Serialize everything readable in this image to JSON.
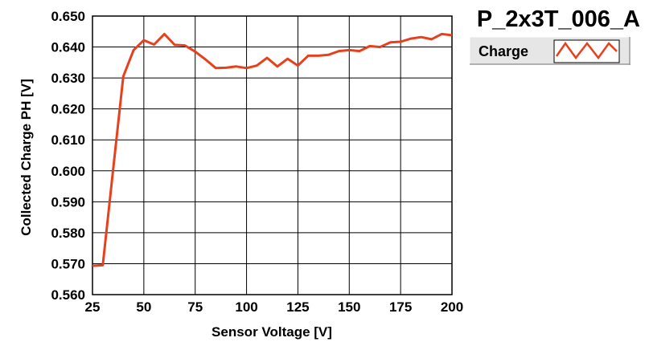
{
  "chart_data": {
    "type": "line",
    "title": "P_2x3T_006_A",
    "xlabel": "Sensor Voltage [V]",
    "ylabel": "Collected Charge PH [V]",
    "xlim": [
      25,
      200
    ],
    "ylim": [
      0.56,
      0.65
    ],
    "xticks": [
      "25",
      "50",
      "75",
      "100",
      "125",
      "150",
      "175",
      "200"
    ],
    "yticks": [
      "0.560",
      "0.570",
      "0.580",
      "0.590",
      "0.600",
      "0.610",
      "0.620",
      "0.630",
      "0.640",
      "0.650"
    ],
    "grid": true,
    "legend_position": "top-right",
    "series": [
      {
        "name": "Charge",
        "color": "#e8401c",
        "x": [
          25,
          30,
          35,
          40,
          45,
          50,
          55,
          60,
          65,
          70,
          75,
          80,
          85,
          90,
          95,
          100,
          105,
          110,
          115,
          120,
          125,
          130,
          135,
          140,
          145,
          150,
          155,
          160,
          165,
          170,
          175,
          180,
          185,
          190,
          195,
          200
        ],
        "y": [
          0.5693,
          0.5695,
          0.6,
          0.6305,
          0.639,
          0.6422,
          0.6408,
          0.6442,
          0.6407,
          0.6405,
          0.6385,
          0.636,
          0.6332,
          0.6333,
          0.6337,
          0.6332,
          0.634,
          0.6365,
          0.6337,
          0.6362,
          0.634,
          0.6372,
          0.6372,
          0.6375,
          0.6387,
          0.639,
          0.6387,
          0.6403,
          0.64,
          0.6415,
          0.6417,
          0.6427,
          0.6432,
          0.6425,
          0.6442,
          0.6438
        ]
      }
    ]
  }
}
